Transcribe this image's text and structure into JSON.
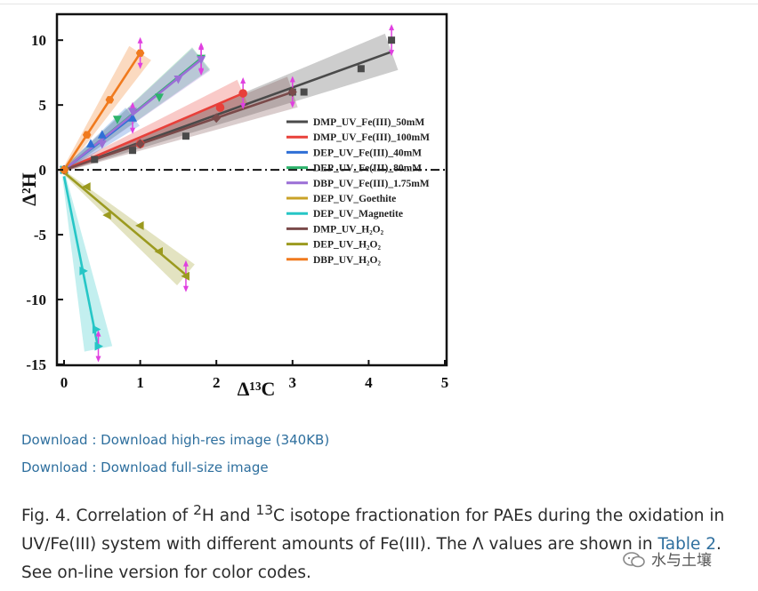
{
  "chart_data": {
    "type": "scatter",
    "xlabel": "Δ¹³C",
    "ylabel": "Δ²H",
    "xlim": [
      0,
      5
    ],
    "ylim": [
      -15,
      12
    ],
    "x_ticks": [
      "0",
      "1",
      "2",
      "3",
      "4",
      "5"
    ],
    "y_ticks": [
      "10",
      "5",
      "0",
      "-5",
      "-10",
      "-15"
    ],
    "legend_position": "right",
    "legend": [
      "DMP_UV_Fe(III)_50mM",
      "DMP_UV_Fe(III)_100mM",
      "DEP_UV_Fe(III)_40mM",
      "DEP_UV_Fe(III)_80mM",
      "DBP_UV_Fe(III)_1.75mM",
      "DEP_UV_Goethite",
      "DEP_UV_Magnetite",
      "DMP_UV_H₂O₂",
      "DEP_UV_H₂O₂",
      "DBP_UV_H₂O₂"
    ],
    "series": [
      {
        "name": "DMP_UV_Fe(III)_50mM",
        "color": "#4a4a4a",
        "marker": "square",
        "points": [
          [
            0,
            0
          ],
          [
            0.4,
            0.8
          ],
          [
            0.9,
            1.5
          ],
          [
            1.6,
            2.6
          ],
          [
            3.0,
            6.0
          ],
          [
            3.15,
            6.0
          ],
          [
            3.9,
            7.8
          ],
          [
            4.3,
            10.0
          ]
        ],
        "fit": [
          [
            0,
            0
          ],
          [
            4.3,
            9.1
          ]
        ]
      },
      {
        "name": "DMP_UV_Fe(III)_100mM",
        "color": "#e8403a",
        "marker": "circle",
        "points": [
          [
            0,
            0
          ],
          [
            1.0,
            2.0
          ],
          [
            2.05,
            4.8
          ],
          [
            2.35,
            5.9
          ]
        ],
        "fit": [
          [
            0,
            0
          ],
          [
            2.35,
            5.9
          ]
        ]
      },
      {
        "name": "DEP_UV_Fe(III)_40mM",
        "color": "#2f6fd6",
        "marker": "triangle-up",
        "points": [
          [
            0,
            0
          ],
          [
            0.35,
            2.0
          ],
          [
            0.5,
            2.7
          ],
          [
            0.9,
            4.0
          ]
        ],
        "fit": [
          [
            0,
            0
          ],
          [
            0.9,
            4.1
          ]
        ]
      },
      {
        "name": "DEP_UV_Fe(III)_80mM",
        "color": "#2db36b",
        "marker": "triangle-down",
        "points": [
          [
            0,
            0
          ],
          [
            0.7,
            3.9
          ],
          [
            1.25,
            5.6
          ],
          [
            1.8,
            8.6
          ]
        ],
        "fit": [
          [
            0,
            0
          ],
          [
            1.8,
            8.6
          ]
        ]
      },
      {
        "name": "DBP_UV_Fe(III)_1.75mM",
        "color": "#9b6fd6",
        "marker": "triangle-down",
        "points": [
          [
            0,
            0
          ],
          [
            0.5,
            2.0
          ],
          [
            0.9,
            4.5
          ],
          [
            1.5,
            7.0
          ],
          [
            1.8,
            8.5
          ]
        ],
        "fit": [
          [
            0,
            0
          ],
          [
            1.8,
            8.5
          ]
        ]
      },
      {
        "name": "DEP_UV_Goethite",
        "color": "#c9a227",
        "marker": "circle",
        "points": [
          [
            0,
            0
          ]
        ],
        "fit": [
          [
            0,
            0
          ],
          [
            0,
            0
          ]
        ]
      },
      {
        "name": "DEP_UV_Magnetite",
        "color": "#26c6c6",
        "marker": "triangle-right",
        "points": [
          [
            0,
            0
          ],
          [
            0.25,
            -7.8
          ],
          [
            0.42,
            -12.3
          ],
          [
            0.45,
            -13.6
          ]
        ],
        "fit": [
          [
            0,
            -0.5
          ],
          [
            0.45,
            -13.8
          ]
        ]
      },
      {
        "name": "DMP_UV_H₂O₂",
        "color": "#7a4a4a",
        "marker": "diamond",
        "points": [
          [
            0,
            0
          ],
          [
            1.0,
            2.0
          ],
          [
            2.0,
            4.0
          ],
          [
            3.0,
            6.0
          ]
        ],
        "fit": [
          [
            0,
            0
          ],
          [
            3.0,
            6.0
          ]
        ]
      },
      {
        "name": "DEP_UV_H₂O₂",
        "color": "#9b9a1f",
        "marker": "triangle-left",
        "points": [
          [
            0,
            0
          ],
          [
            0.3,
            -1.3
          ],
          [
            0.57,
            -3.5
          ],
          [
            1.0,
            -4.3
          ],
          [
            1.25,
            -6.3
          ],
          [
            1.6,
            -8.2
          ]
        ],
        "fit": [
          [
            0,
            -0.2
          ],
          [
            1.6,
            -8.1
          ]
        ]
      },
      {
        "name": "DBP_UV_H₂O₂",
        "color": "#f07a1e",
        "marker": "hexagon",
        "points": [
          [
            0,
            0
          ],
          [
            0.3,
            2.7
          ],
          [
            0.6,
            5.4
          ],
          [
            1.0,
            9.0
          ]
        ],
        "fit": [
          [
            0,
            0
          ],
          [
            1.0,
            9.0
          ]
        ]
      }
    ]
  },
  "links": {
    "high_res": "Download : Download high-res image (340KB)",
    "full_size": "Download : Download full-size image"
  },
  "caption": {
    "fig_label": "Fig. 4.",
    "text_a": " Correlation of ",
    "sup_h": "2",
    "text_b": "H and ",
    "sup_c": "13",
    "text_c": "C isotope fractionation for PAEs during the oxidation in UV/Fe(III) system with different amounts of Fe(III). The Λ values are shown in ",
    "table_link": "Table 2",
    "text_d": ". See on-line version for color codes."
  },
  "watermark": {
    "text": "水与土壤"
  }
}
